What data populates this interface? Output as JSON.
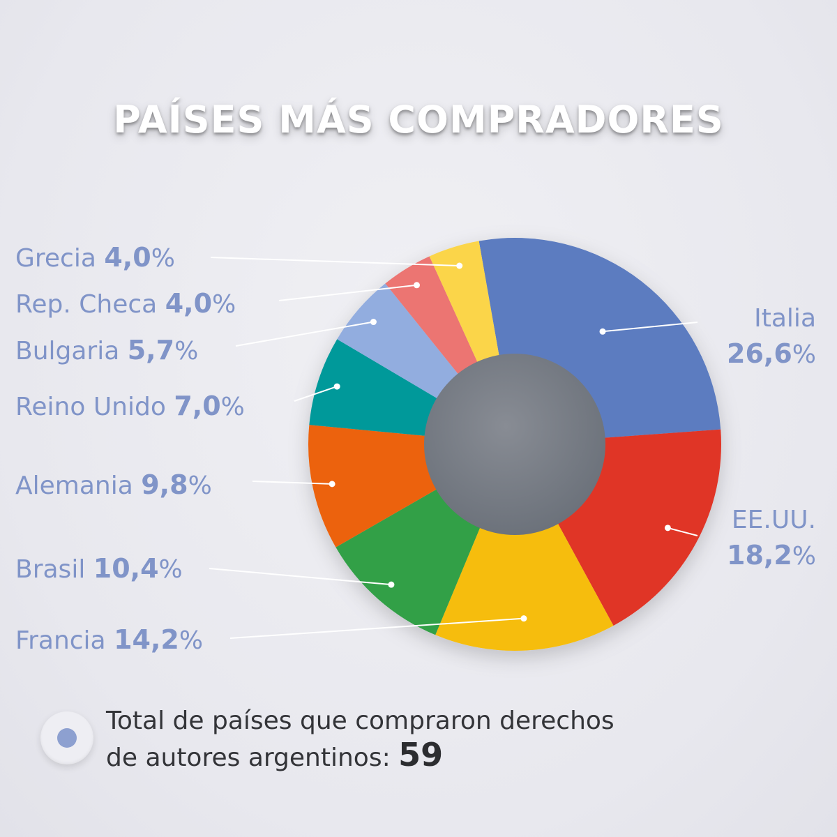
{
  "title": "PAÍSES MÁS COMPRADORES",
  "chart_data": {
    "type": "pie",
    "title": "PAÍSES MÁS COMPRADORES",
    "unit": "%",
    "slices": [
      {
        "label": "Italia",
        "value": 26.6,
        "display": "26,6",
        "color": "#5b7bc0"
      },
      {
        "label": "EE.UU.",
        "value": 18.2,
        "display": "18,2",
        "color": "#e03427"
      },
      {
        "label": "Francia",
        "value": 14.2,
        "display": "14,2",
        "color": "#f6bd0a"
      },
      {
        "label": "Brasil",
        "value": 10.4,
        "display": "10,4",
        "color": "#32a046"
      },
      {
        "label": "Alemania",
        "value": 9.8,
        "display": "9,8",
        "color": "#ec620b"
      },
      {
        "label": "Reino Unido",
        "value": 7.0,
        "display": "7,0",
        "color": "#03999a"
      },
      {
        "label": "Bulgaria",
        "value": 5.7,
        "display": "5,7",
        "color": "#92addf"
      },
      {
        "label": "Rep. Checa",
        "value": 4.0,
        "display": "4,0",
        "color": "#ec7472"
      },
      {
        "label": "Grecia",
        "value": 4.0,
        "display": "4,0",
        "color": "#fbd54a"
      }
    ]
  },
  "footer": {
    "text_line1": "Total de países que compraron derechos",
    "text_line2": "de autores argentinos: ",
    "total": "59"
  }
}
